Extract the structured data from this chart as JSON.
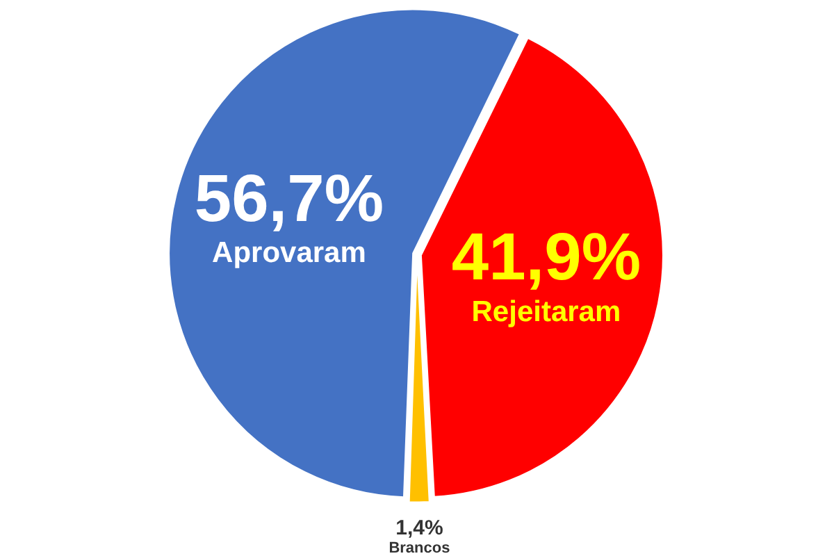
{
  "chart_data": {
    "type": "pie",
    "categories": [
      "Aprovaram",
      "Rejeitaram",
      "Brancos"
    ],
    "values": [
      56.7,
      41.9,
      1.4
    ],
    "colors": [
      "#4472c4",
      "#ff0000",
      "#ffc000"
    ],
    "value_labels": [
      "56,7%",
      "41,9%",
      "1,4%"
    ]
  }
}
